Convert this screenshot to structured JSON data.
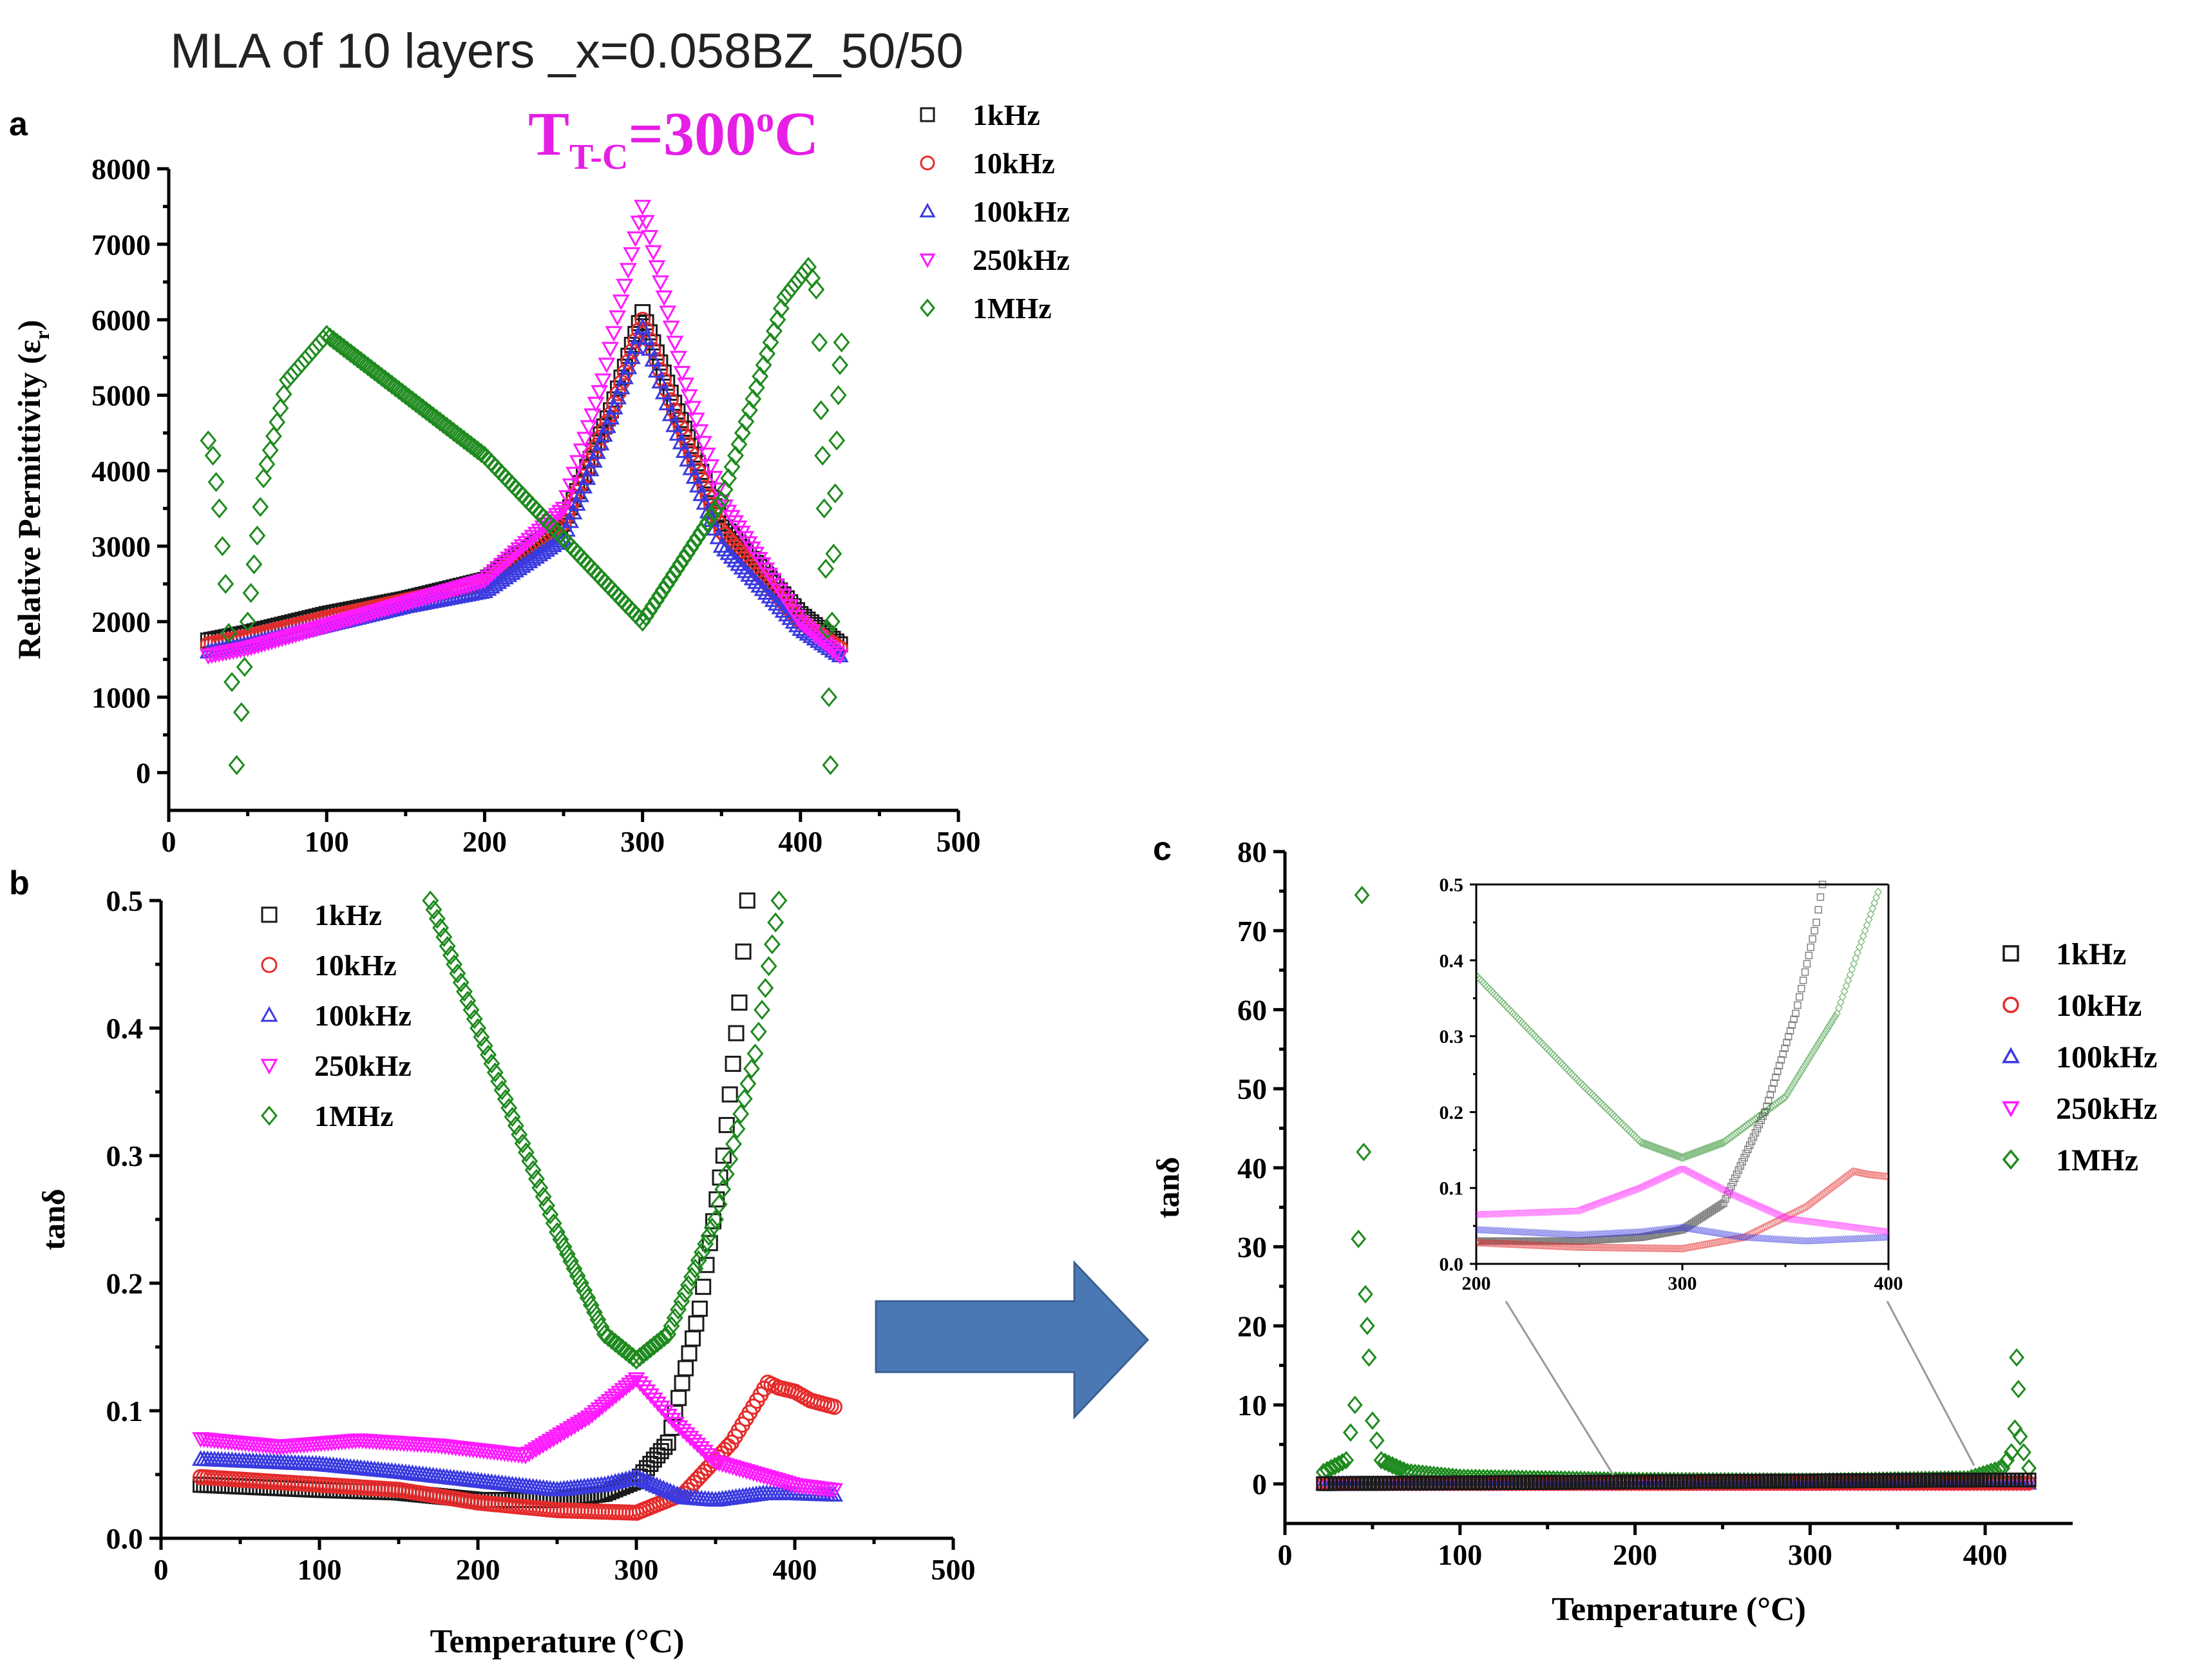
{
  "figure": {
    "title": "MLA of 10 layers _x=0.058BZ_50/50",
    "panel_labels": [
      "a",
      "b",
      "c"
    ],
    "annotation": {
      "main": "T",
      "sub": "T-C",
      "value": "=300",
      "sup": "o",
      "unit": "C"
    },
    "colors": {
      "1kHz": "#1a1a1a",
      "10kHz": "#e52b2b",
      "100kHz": "#3a3ae0",
      "250kHz": "#ff1aff",
      "1MHz": "#1e8a1e",
      "arrow": "#4a78b5",
      "annotation": "#e61ee6"
    },
    "legend": [
      {
        "label": "1kHz",
        "marker": "square"
      },
      {
        "label": "10kHz",
        "marker": "circle"
      },
      {
        "label": "100kHz",
        "marker": "triangle-up"
      },
      {
        "label": "250kHz",
        "marker": "triangle-down"
      },
      {
        "label": "1MHz",
        "marker": "diamond"
      }
    ]
  },
  "chart_data": [
    {
      "panel": "a",
      "type": "scatter",
      "title": "MLA of 10 layers _x=0.058BZ_50/50",
      "xlabel": "",
      "ylabel": "Relative Permittivity (ε_r)",
      "ylabel_main": "Relative Permittivity (ε",
      "ylabel_sub": "r",
      "ylabel_close": ")",
      "xlim": [
        0,
        500
      ],
      "ylim": [
        -500,
        8000
      ],
      "xticks": [
        0,
        100,
        200,
        300,
        400,
        500
      ],
      "yticks": [
        0,
        1000,
        2000,
        3000,
        4000,
        5000,
        6000,
        7000,
        8000
      ],
      "series": [
        {
          "name": "1kHz",
          "points": [
            [
              25,
              1750
            ],
            [
              50,
              1850
            ],
            [
              100,
              2100
            ],
            [
              150,
              2300
            ],
            [
              200,
              2550
            ],
            [
              250,
              3300
            ],
            [
              280,
              4800
            ],
            [
              300,
              6100
            ],
            [
              320,
              4900
            ],
            [
              350,
              3300
            ],
            [
              400,
              2100
            ],
            [
              425,
              1700
            ]
          ]
        },
        {
          "name": "10kHz",
          "points": [
            [
              25,
              1700
            ],
            [
              50,
              1800
            ],
            [
              100,
              2050
            ],
            [
              150,
              2280
            ],
            [
              200,
              2500
            ],
            [
              250,
              3300
            ],
            [
              280,
              4750
            ],
            [
              300,
              6000
            ],
            [
              320,
              4800
            ],
            [
              350,
              3200
            ],
            [
              400,
              2000
            ],
            [
              425,
              1650
            ]
          ]
        },
        {
          "name": "100kHz",
          "points": [
            [
              25,
              1600
            ],
            [
              50,
              1700
            ],
            [
              100,
              1950
            ],
            [
              150,
              2200
            ],
            [
              200,
              2400
            ],
            [
              250,
              3100
            ],
            [
              280,
              4700
            ],
            [
              300,
              5900
            ],
            [
              320,
              4600
            ],
            [
              350,
              3000
            ],
            [
              400,
              1900
            ],
            [
              425,
              1550
            ]
          ]
        },
        {
          "name": "250kHz",
          "points": [
            [
              25,
              1550
            ],
            [
              50,
              1650
            ],
            [
              100,
              1950
            ],
            [
              150,
              2250
            ],
            [
              200,
              2550
            ],
            [
              250,
              3500
            ],
            [
              275,
              5200
            ],
            [
              300,
              7500
            ],
            [
              325,
              5300
            ],
            [
              350,
              3600
            ],
            [
              400,
              2000
            ],
            [
              425,
              1550
            ]
          ]
        },
        {
          "name": "1MHz",
          "points": [
            [
              25,
              4400
            ],
            [
              28,
              4200
            ],
            [
              32,
              3500
            ],
            [
              36,
              2500
            ],
            [
              40,
              1200
            ],
            [
              43,
              100
            ],
            [
              46,
              800
            ],
            [
              50,
              2000
            ],
            [
              60,
              3900
            ],
            [
              75,
              5200
            ],
            [
              100,
              5800
            ],
            [
              150,
              5000
            ],
            [
              200,
              4200
            ],
            [
              250,
              3100
            ],
            [
              300,
              2000
            ],
            [
              350,
              3600
            ],
            [
              390,
              6300
            ],
            [
              405,
              6700
            ],
            [
              410,
              6400
            ],
            [
              412,
              5700
            ],
            [
              413,
              4800
            ],
            [
              414,
              4200
            ],
            [
              415,
              3500
            ],
            [
              416,
              2700
            ],
            [
              417,
              1900
            ],
            [
              418,
              1000
            ],
            [
              419,
              100
            ],
            [
              420,
              2000
            ],
            [
              421,
              2900
            ],
            [
              422,
              3700
            ],
            [
              423,
              4400
            ],
            [
              424,
              5000
            ],
            [
              425,
              5400
            ],
            [
              426,
              5700
            ]
          ]
        }
      ]
    },
    {
      "panel": "b",
      "type": "scatter",
      "xlabel": "Temperature (°C)",
      "ylabel": "tanδ",
      "xlim": [
        0,
        500
      ],
      "ylim": [
        0,
        0.5
      ],
      "xticks": [
        0,
        100,
        200,
        300,
        400,
        500
      ],
      "yticks": [
        0.0,
        0.1,
        0.2,
        0.3,
        0.4,
        0.5
      ],
      "series": [
        {
          "name": "1kHz",
          "points": [
            [
              25,
              0.042
            ],
            [
              100,
              0.038
            ],
            [
              150,
              0.036
            ],
            [
              200,
              0.03
            ],
            [
              250,
              0.03
            ],
            [
              280,
              0.035
            ],
            [
              300,
              0.045
            ],
            [
              320,
              0.075
            ],
            [
              340,
              0.18
            ],
            [
              355,
              0.3
            ],
            [
              365,
              0.42
            ],
            [
              370,
              0.5
            ]
          ]
        },
        {
          "name": "10kHz",
          "points": [
            [
              25,
              0.048
            ],
            [
              100,
              0.042
            ],
            [
              150,
              0.038
            ],
            [
              200,
              0.028
            ],
            [
              250,
              0.022
            ],
            [
              300,
              0.02
            ],
            [
              330,
              0.035
            ],
            [
              360,
              0.075
            ],
            [
              383,
              0.122
            ],
            [
              390,
              0.118
            ],
            [
              400,
              0.115
            ],
            [
              410,
              0.108
            ],
            [
              425,
              0.103
            ]
          ]
        },
        {
          "name": "100kHz",
          "points": [
            [
              25,
              0.062
            ],
            [
              100,
              0.058
            ],
            [
              150,
              0.052
            ],
            [
              200,
              0.045
            ],
            [
              250,
              0.038
            ],
            [
              280,
              0.042
            ],
            [
              300,
              0.048
            ],
            [
              330,
              0.032
            ],
            [
              350,
              0.03
            ],
            [
              380,
              0.035
            ],
            [
              400,
              0.035
            ],
            [
              425,
              0.034
            ]
          ]
        },
        {
          "name": "250kHz",
          "points": [
            [
              25,
              0.078
            ],
            [
              75,
              0.072
            ],
            [
              125,
              0.077
            ],
            [
              175,
              0.073
            ],
            [
              230,
              0.065
            ],
            [
              270,
              0.095
            ],
            [
              300,
              0.125
            ],
            [
              325,
              0.09
            ],
            [
              350,
              0.06
            ],
            [
              400,
              0.042
            ],
            [
              425,
              0.038
            ]
          ]
        },
        {
          "name": "1MHz",
          "points": [
            [
              170,
              0.5
            ],
            [
              200,
              0.4
            ],
            [
              250,
              0.24
            ],
            [
              280,
              0.16
            ],
            [
              300,
              0.14
            ],
            [
              320,
              0.16
            ],
            [
              350,
              0.25
            ],
            [
              375,
              0.38
            ],
            [
              390,
              0.5
            ]
          ]
        }
      ]
    },
    {
      "panel": "c",
      "type": "scatter",
      "xlabel": "Temperature (°C)",
      "ylabel": "tanδ",
      "xlim": [
        0,
        450
      ],
      "ylim": [
        -5,
        80
      ],
      "xticks": [
        0,
        100,
        200,
        300,
        400
      ],
      "yticks": [
        0,
        10,
        20,
        30,
        40,
        50,
        60,
        70,
        80
      ],
      "series": [
        {
          "name": "1MHz",
          "points": [
            [
              22,
              1.5
            ],
            [
              35,
              3
            ],
            [
              40,
              10
            ],
            [
              42,
              31
            ],
            [
              44,
              74.5
            ],
            [
              45,
              42
            ],
            [
              46,
              24
            ],
            [
              47,
              20
            ],
            [
              48,
              16
            ],
            [
              50,
              8
            ],
            [
              55,
              3
            ],
            [
              70,
              1.5
            ],
            [
              100,
              0.8
            ],
            [
              200,
              0.4
            ],
            [
              300,
              0.3
            ],
            [
              390,
              0.6
            ],
            [
              410,
              2
            ],
            [
              415,
              4
            ],
            [
              417,
              7
            ],
            [
              418,
              16
            ],
            [
              419,
              12
            ],
            [
              420,
              6
            ],
            [
              422,
              4
            ],
            [
              425,
              2
            ]
          ]
        },
        {
          "name": "250kHz",
          "points": [
            [
              22,
              0.1
            ],
            [
              400,
              0.1
            ],
            [
              425,
              0.1
            ]
          ]
        },
        {
          "name": "100kHz",
          "points": [
            [
              22,
              0.05
            ],
            [
              400,
              0.05
            ],
            [
              425,
              0.05
            ]
          ]
        },
        {
          "name": "10kHz",
          "points": [
            [
              22,
              0.05
            ],
            [
              400,
              0.1
            ],
            [
              425,
              0.1
            ]
          ]
        },
        {
          "name": "1kHz",
          "points": [
            [
              22,
              0.04
            ],
            [
              400,
              0.5
            ],
            [
              425,
              0.5
            ]
          ]
        }
      ],
      "inset": {
        "xlim": [
          200,
          400
        ],
        "ylim": [
          0,
          0.5
        ],
        "xticks": [
          200,
          300,
          400
        ],
        "yticks": [
          0.0,
          0.1,
          0.2,
          0.3,
          0.4,
          0.5
        ],
        "series": [
          {
            "name": "1MHz",
            "points": [
              [
                200,
                0.38
              ],
              [
                250,
                0.24
              ],
              [
                280,
                0.16
              ],
              [
                300,
                0.14
              ],
              [
                320,
                0.16
              ],
              [
                350,
                0.22
              ],
              [
                375,
                0.33
              ],
              [
                395,
                0.49
              ]
            ]
          },
          {
            "name": "1kHz",
            "points": [
              [
                200,
                0.03
              ],
              [
                250,
                0.03
              ],
              [
                280,
                0.035
              ],
              [
                300,
                0.045
              ],
              [
                320,
                0.08
              ],
              [
                340,
                0.2
              ],
              [
                355,
                0.33
              ],
              [
                365,
                0.45
              ],
              [
                368,
                0.5
              ]
            ]
          },
          {
            "name": "10kHz",
            "points": [
              [
                200,
                0.028
              ],
              [
                250,
                0.022
              ],
              [
                300,
                0.02
              ],
              [
                330,
                0.035
              ],
              [
                360,
                0.075
              ],
              [
                383,
                0.122
              ],
              [
                390,
                0.118
              ],
              [
                400,
                0.115
              ]
            ]
          },
          {
            "name": "100kHz",
            "points": [
              [
                200,
                0.045
              ],
              [
                250,
                0.038
              ],
              [
                280,
                0.042
              ],
              [
                300,
                0.048
              ],
              [
                330,
                0.035
              ],
              [
                360,
                0.03
              ],
              [
                400,
                0.035
              ]
            ]
          },
          {
            "name": "250kHz",
            "points": [
              [
                200,
                0.065
              ],
              [
                250,
                0.07
              ],
              [
                280,
                0.1
              ],
              [
                300,
                0.125
              ],
              [
                325,
                0.09
              ],
              [
                350,
                0.06
              ],
              [
                400,
                0.042
              ]
            ]
          }
        ]
      }
    }
  ]
}
